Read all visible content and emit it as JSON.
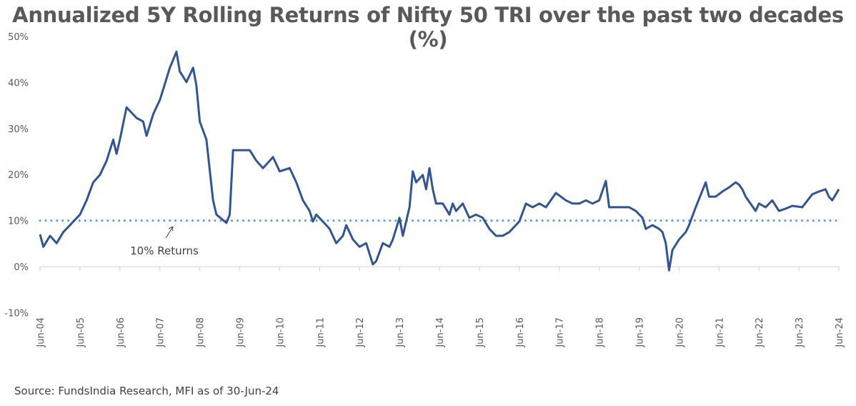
{
  "chart_data": {
    "type": "line",
    "title": "Annualized 5Y Rolling Returns of Nifty 50 TRI over the past two decades (%)",
    "xlabel": "",
    "ylabel": "",
    "ylim": [
      -10,
      50
    ],
    "y_ticks": [
      "-10%",
      "0%",
      "10%",
      "20%",
      "30%",
      "40%",
      "50%"
    ],
    "y_tick_values": [
      -10,
      0,
      10,
      20,
      30,
      40,
      50
    ],
    "x_ticks": [
      "Jun-04",
      "Jun-05",
      "Jun-06",
      "Jun-07",
      "Jun-08",
      "Jun-09",
      "Jun-10",
      "Jun-11",
      "Jun-12",
      "Jun-13",
      "Jun-14",
      "Jun-15",
      "Jun-16",
      "Jun-17",
      "Jun-18",
      "Jun-19",
      "Jun-20",
      "Jun-21",
      "Jun-22",
      "Jun-23",
      "Jun-24"
    ],
    "xlim": [
      "2004-06",
      "2024-06"
    ],
    "grid": false,
    "series": [
      {
        "color": "#2F5597",
        "points": [
          [
            "2004-06",
            7.0
          ],
          [
            "2004-07",
            4.3
          ],
          [
            "2004-09",
            6.7
          ],
          [
            "2004-11",
            5.1
          ],
          [
            "2005-01",
            7.5
          ],
          [
            "2005-03",
            9.0
          ],
          [
            "2005-06",
            11.3
          ],
          [
            "2005-08",
            14.4
          ],
          [
            "2005-10",
            18.3
          ],
          [
            "2005-12",
            19.9
          ],
          [
            "2006-02",
            23.0
          ],
          [
            "2006-04",
            27.6
          ],
          [
            "2006-05",
            24.5
          ],
          [
            "2006-06",
            27.6
          ],
          [
            "2006-08",
            34.6
          ],
          [
            "2006-11",
            32.3
          ],
          [
            "2007-01",
            31.5
          ],
          [
            "2007-02",
            28.4
          ],
          [
            "2007-04",
            33.1
          ],
          [
            "2007-06",
            36.2
          ],
          [
            "2007-07",
            38.5
          ],
          [
            "2007-09",
            43.2
          ],
          [
            "2007-11",
            46.7
          ],
          [
            "2007-12",
            42.4
          ],
          [
            "2008-02",
            40.1
          ],
          [
            "2008-04",
            43.2
          ],
          [
            "2008-05",
            39.3
          ],
          [
            "2008-06",
            31.5
          ],
          [
            "2008-08",
            27.6
          ],
          [
            "2008-10",
            14.4
          ],
          [
            "2008-11",
            11.3
          ],
          [
            "2009-02",
            9.5
          ],
          [
            "2009-03",
            11.3
          ],
          [
            "2009-04",
            25.3
          ],
          [
            "2009-07",
            25.3
          ],
          [
            "2009-09",
            25.3
          ],
          [
            "2009-11",
            23.0
          ],
          [
            "2010-01",
            21.4
          ],
          [
            "2010-04",
            23.8
          ],
          [
            "2010-06",
            20.7
          ],
          [
            "2010-09",
            21.4
          ],
          [
            "2010-11",
            18.3
          ],
          [
            "2011-01",
            14.4
          ],
          [
            "2011-03",
            12.1
          ],
          [
            "2011-04",
            9.8
          ],
          [
            "2011-05",
            11.3
          ],
          [
            "2011-08",
            9.0
          ],
          [
            "2011-09",
            8.2
          ],
          [
            "2011-11",
            5.1
          ],
          [
            "2012-01",
            6.7
          ],
          [
            "2012-02",
            9.0
          ],
          [
            "2012-04",
            5.9
          ],
          [
            "2012-06",
            4.3
          ],
          [
            "2012-08",
            5.1
          ],
          [
            "2012-10",
            0.5
          ],
          [
            "2012-11",
            1.2
          ],
          [
            "2013-01",
            5.1
          ],
          [
            "2013-03",
            4.3
          ],
          [
            "2013-04",
            5.9
          ],
          [
            "2013-06",
            10.6
          ],
          [
            "2013-07",
            6.7
          ],
          [
            "2013-09",
            12.9
          ],
          [
            "2013-10",
            20.7
          ],
          [
            "2013-11",
            18.3
          ],
          [
            "2014-01",
            19.9
          ],
          [
            "2014-02",
            16.8
          ],
          [
            "2014-03",
            21.4
          ],
          [
            "2014-04",
            16.8
          ],
          [
            "2014-05",
            13.7
          ],
          [
            "2014-07",
            13.7
          ],
          [
            "2014-09",
            11.3
          ],
          [
            "2014-10",
            13.7
          ],
          [
            "2014-11",
            12.1
          ],
          [
            "2015-01",
            13.7
          ],
          [
            "2015-03",
            10.6
          ],
          [
            "2015-05",
            11.3
          ],
          [
            "2015-07",
            10.6
          ],
          [
            "2015-09",
            8.2
          ],
          [
            "2015-11",
            6.7
          ],
          [
            "2016-01",
            6.7
          ],
          [
            "2016-03",
            7.5
          ],
          [
            "2016-06",
            9.8
          ],
          [
            "2016-08",
            13.7
          ],
          [
            "2016-10",
            12.9
          ],
          [
            "2016-12",
            13.7
          ],
          [
            "2017-02",
            12.9
          ],
          [
            "2017-05",
            16.0
          ],
          [
            "2017-08",
            14.4
          ],
          [
            "2017-10",
            13.7
          ],
          [
            "2017-12",
            13.7
          ],
          [
            "2018-02",
            14.4
          ],
          [
            "2018-04",
            13.7
          ],
          [
            "2018-06",
            14.4
          ],
          [
            "2018-08",
            18.6
          ],
          [
            "2018-09",
            12.9
          ],
          [
            "2018-12",
            12.9
          ],
          [
            "2019-03",
            12.9
          ],
          [
            "2019-05",
            12.1
          ],
          [
            "2019-07",
            10.6
          ],
          [
            "2019-08",
            8.2
          ],
          [
            "2019-10",
            9.0
          ],
          [
            "2019-12",
            8.2
          ],
          [
            "2020-01",
            7.5
          ],
          [
            "2020-02",
            5.1
          ],
          [
            "2020-03",
            -0.8
          ],
          [
            "2020-04",
            3.6
          ],
          [
            "2020-06",
            5.9
          ],
          [
            "2020-08",
            7.5
          ],
          [
            "2020-09",
            9.0
          ],
          [
            "2020-11",
            12.9
          ],
          [
            "2021-02",
            18.3
          ],
          [
            "2021-03",
            15.2
          ],
          [
            "2021-05",
            15.2
          ],
          [
            "2021-07",
            16.3
          ],
          [
            "2021-09",
            17.2
          ],
          [
            "2021-11",
            18.3
          ],
          [
            "2021-12",
            17.8
          ],
          [
            "2022-01",
            16.8
          ],
          [
            "2022-02",
            15.2
          ],
          [
            "2022-05",
            12.1
          ],
          [
            "2022-06",
            13.7
          ],
          [
            "2022-08",
            12.9
          ],
          [
            "2022-10",
            14.4
          ],
          [
            "2022-12",
            12.1
          ],
          [
            "2023-02",
            12.6
          ],
          [
            "2023-04",
            13.2
          ],
          [
            "2023-07",
            12.9
          ],
          [
            "2023-10",
            15.7
          ],
          [
            "2023-12",
            16.3
          ],
          [
            "2024-02",
            16.8
          ],
          [
            "2024-03",
            15.2
          ],
          [
            "2024-04",
            14.4
          ],
          [
            "2024-06",
            16.8
          ]
        ]
      }
    ],
    "reference_line": {
      "value": 10,
      "style": "dotted",
      "color": "#5B9BD5",
      "annotation": "10% Returns"
    }
  },
  "source": "Source: FundsIndia Research, MFI as of 30-Jun-24"
}
